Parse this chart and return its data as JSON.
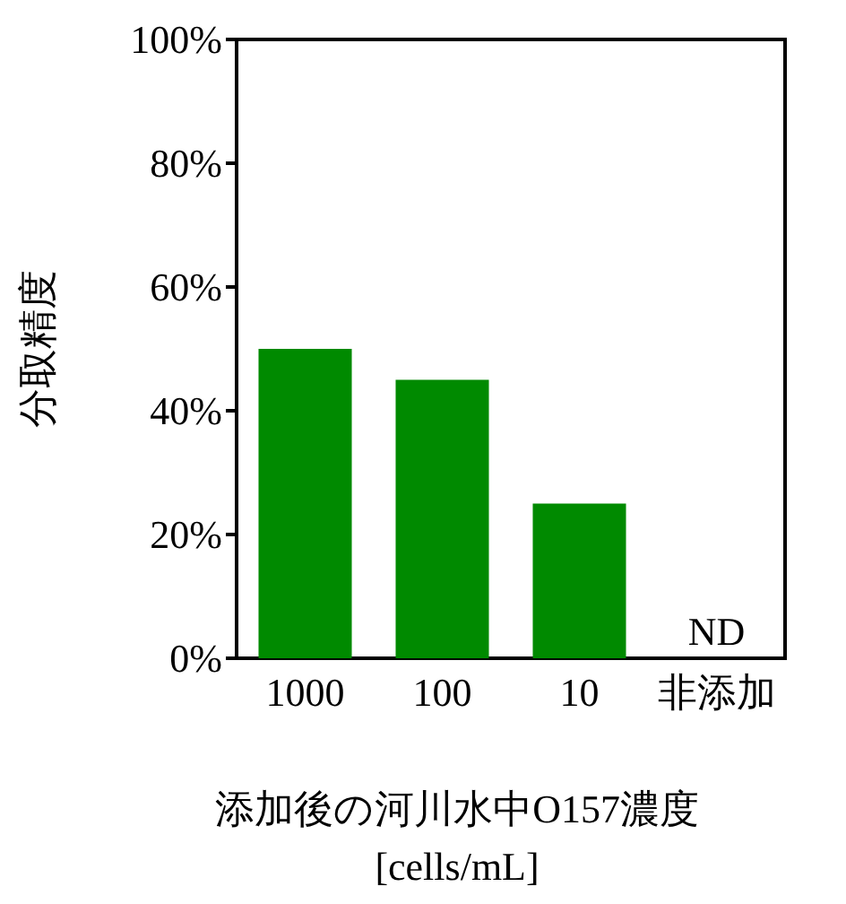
{
  "chart_data": {
    "type": "bar",
    "categories": [
      "1000",
      "100",
      "10",
      "非添加"
    ],
    "values": [
      50,
      45,
      25,
      null
    ],
    "color": "#008a00",
    "ylabel": "分取精度",
    "xlabel": "添加後の河川水中O157濃度\n[cells/mL]",
    "ylim": [
      0,
      100
    ],
    "yticks": [
      {
        "value": 0,
        "label": "0%"
      },
      {
        "value": 20,
        "label": "20%"
      },
      {
        "value": 40,
        "label": "40%"
      },
      {
        "value": 60,
        "label": "60%"
      },
      {
        "value": 80,
        "label": "80%"
      },
      {
        "value": 100,
        "label": "100%"
      }
    ],
    "annotations": [
      "ND"
    ],
    "grid": false
  }
}
